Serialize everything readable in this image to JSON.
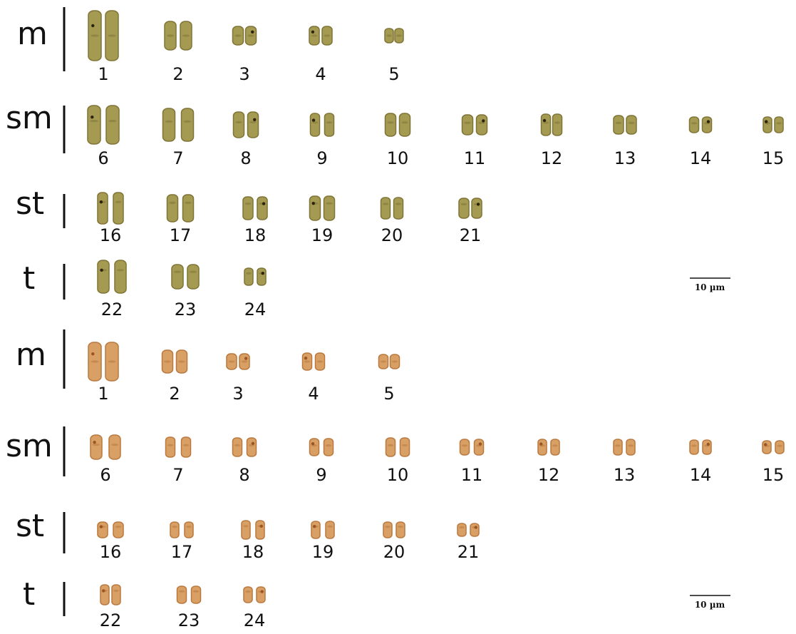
{
  "panels": [
    {
      "id": "top",
      "style": "green",
      "scale_bar_label": "10 µm",
      "groups": [
        {
          "label": "m",
          "pairs": [
            "1",
            "2",
            "3",
            "4",
            "5"
          ]
        },
        {
          "label": "sm",
          "pairs": [
            "6",
            "7",
            "8",
            "9",
            "10",
            "11",
            "12",
            "13",
            "14",
            "15"
          ]
        },
        {
          "label": "st",
          "pairs": [
            "16",
            "17",
            "18",
            "19",
            "20",
            "21"
          ]
        },
        {
          "label": "t",
          "pairs": [
            "22",
            "23",
            "24"
          ]
        }
      ]
    },
    {
      "id": "bottom",
      "style": "orange",
      "scale_bar_label": "10 µm",
      "groups": [
        {
          "label": "m",
          "pairs": [
            "1",
            "2",
            "3",
            "4",
            "5"
          ]
        },
        {
          "label": "sm",
          "pairs": [
            "6",
            "7",
            "8",
            "9",
            "10",
            "11",
            "12",
            "13",
            "14",
            "15"
          ]
        },
        {
          "label": "st",
          "pairs": [
            "16",
            "17",
            "18",
            "19",
            "20",
            "21"
          ]
        },
        {
          "label": "t",
          "pairs": [
            "22",
            "23",
            "24"
          ]
        }
      ]
    }
  ],
  "colors": {
    "green_fill": "#a59a52",
    "green_edge": "#7f7436",
    "green_mark": "#2b2410",
    "orange_fill": "#d9a065",
    "orange_edge": "#b9783e",
    "orange_mark": "#9b5424"
  }
}
